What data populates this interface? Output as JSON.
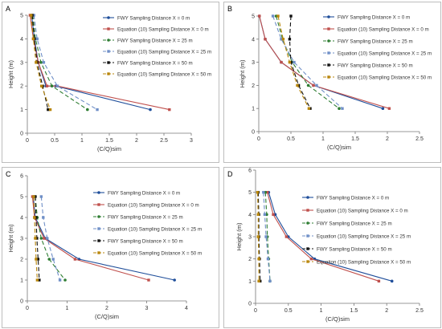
{
  "legend_labels": [
    "FWY Sampling Distance X = 0 m",
    "Equation (10) Sampling Distance X = 0 m",
    "FWY Sampling Distance X = 25 m",
    "Equation (10) Sampling Distance X = 25 m",
    "FWY Sampling Distance X = 50 m",
    "Equation (10) Sampling Distance X = 50 m"
  ],
  "series_colors": [
    "#1f4e9a",
    "#c0504d",
    "#2e7d32",
    "#6f8fc7",
    "#111111",
    "#b8860b"
  ],
  "chart_data": [
    {
      "panel": "A",
      "type": "line",
      "xlabel": "(C/Q)sim",
      "ylabel": "Height (m)",
      "xlim": [
        0,
        3
      ],
      "ylim": [
        0,
        5
      ],
      "xticks": [
        "0",
        "0.5",
        "1",
        "1.5",
        "2",
        "2.5",
        "3"
      ],
      "yticks": [
        "0",
        "1",
        "2",
        "3",
        "4",
        "5"
      ],
      "series": [
        {
          "name": "FWY Sampling Distance X = 0 m",
          "x": [
            0.08,
            0.13,
            0.2,
            0.34,
            0.52,
            2.25
          ],
          "y": [
            5,
            4,
            3,
            2,
            2,
            1
          ]
        },
        {
          "name": "Equation (10) Sampling Distance X = 0 m",
          "x": [
            0.05,
            0.11,
            0.2,
            0.36,
            0.55,
            2.6
          ],
          "y": [
            5,
            4,
            3,
            2,
            2,
            1
          ]
        },
        {
          "name": "FWY Sampling Distance X = 25 m",
          "x": [
            0.1,
            0.15,
            0.25,
            0.45,
            1.1
          ],
          "y": [
            5,
            4,
            3,
            2,
            1
          ]
        },
        {
          "name": "Equation (10) Sampling Distance X = 25 m",
          "x": [
            0.12,
            0.18,
            0.3,
            0.55,
            1.28
          ],
          "y": [
            5,
            4,
            3,
            2,
            1
          ]
        },
        {
          "name": "FWY Sampling Distance X = 50 m",
          "x": [
            0.09,
            0.13,
            0.18,
            0.28,
            0.38
          ],
          "y": [
            5,
            4,
            3,
            2,
            1
          ]
        },
        {
          "name": "Equation (10) Sampling Distance X = 50 m",
          "x": [
            0.07,
            0.11,
            0.16,
            0.26,
            0.42
          ],
          "y": [
            5,
            4,
            3,
            2,
            1
          ]
        }
      ]
    },
    {
      "panel": "B",
      "type": "line",
      "xlabel": "(C/Q)sim",
      "ylabel": "Height (m)",
      "xlim": [
        0,
        2.5
      ],
      "ylim": [
        0,
        5
      ],
      "xticks": [
        "0",
        "0.5",
        "1",
        "1.5",
        "2",
        "2.5"
      ],
      "yticks": [
        "0",
        "1",
        "2",
        "3",
        "4",
        "5"
      ],
      "series": [
        {
          "name": "FWY Sampling Distance X = 0 m",
          "x": [
            0.01,
            0.1,
            0.35,
            0.85,
            1.93
          ],
          "y": [
            5,
            4,
            3,
            2,
            1
          ]
        },
        {
          "name": "Equation (10) Sampling Distance X = 0 m",
          "x": [
            0.01,
            0.1,
            0.35,
            0.85,
            2.03
          ],
          "y": [
            5,
            4,
            3,
            2,
            1
          ]
        },
        {
          "name": "FWY Sampling Distance X = 25 m",
          "x": [
            0.27,
            0.37,
            0.52,
            0.77,
            1.25
          ],
          "y": [
            5,
            4,
            3,
            2,
            1
          ]
        },
        {
          "name": "Equation (10) Sampling Distance X = 25 m",
          "x": [
            0.22,
            0.35,
            0.55,
            0.9,
            1.3
          ],
          "y": [
            5,
            4,
            3,
            2,
            1
          ]
        },
        {
          "name": "FWY Sampling Distance X = 50 m",
          "x": [
            0.5,
            0.48,
            0.5,
            0.62,
            0.8
          ],
          "y": [
            5,
            4,
            3,
            2,
            1
          ]
        },
        {
          "name": "Equation (10) Sampling Distance X = 50 m",
          "x": [
            0.3,
            0.38,
            0.48,
            0.6,
            0.78
          ],
          "y": [
            5,
            4,
            3,
            2,
            1
          ]
        }
      ]
    },
    {
      "panel": "C",
      "type": "line",
      "xlabel": "(C/Q)sim",
      "ylabel": "Height (m)",
      "xlim": [
        0,
        4
      ],
      "ylim": [
        0,
        6
      ],
      "xticks": [
        "0",
        "1",
        "2",
        "3",
        "4"
      ],
      "yticks": [
        "0",
        "1",
        "2",
        "3",
        "4",
        "5",
        "6"
      ],
      "series": [
        {
          "name": "FWY Sampling Distance X = 0 m",
          "x": [
            0.15,
            0.2,
            0.45,
            1.3,
            3.7
          ],
          "y": [
            5,
            4,
            3,
            2,
            1
          ]
        },
        {
          "name": "Equation (10) Sampling Distance X = 0 m",
          "x": [
            0.13,
            0.18,
            0.42,
            1.2,
            3.05
          ],
          "y": [
            5,
            4,
            3,
            2,
            1
          ]
        },
        {
          "name": "FWY Sampling Distance X = 25 m",
          "x": [
            0.2,
            0.25,
            0.35,
            0.55,
            0.95
          ],
          "y": [
            5,
            4,
            3,
            2,
            1
          ]
        },
        {
          "name": "Equation (10) Sampling Distance X = 25 m",
          "x": [
            0.35,
            0.4,
            0.5,
            0.65,
            0.82
          ],
          "y": [
            5,
            4,
            3,
            2,
            1
          ]
        },
        {
          "name": "FWY Sampling Distance X = 50 m",
          "x": [
            0.2,
            0.22,
            0.24,
            0.27,
            0.3
          ],
          "y": [
            5,
            4,
            3,
            2,
            1
          ]
        },
        {
          "name": "Equation (10) Sampling Distance X = 50 m",
          "x": [
            0.16,
            0.18,
            0.2,
            0.22,
            0.25
          ],
          "y": [
            5,
            4,
            3,
            2,
            1
          ]
        }
      ]
    },
    {
      "panel": "D",
      "type": "line",
      "xlabel": "(C/Q)sim",
      "ylabel": "Height (m)",
      "xlim": [
        0,
        2.5
      ],
      "ylim": [
        0,
        6
      ],
      "xticks": [
        "0",
        "0.5",
        "1",
        "1.5",
        "2",
        "2.5"
      ],
      "yticks": [
        "0",
        "1",
        "2",
        "3",
        "4",
        "5",
        "6"
      ],
      "series": [
        {
          "name": "FWY Sampling Distance X = 0 m",
          "x": [
            0.2,
            0.3,
            0.5,
            0.9,
            2.08
          ],
          "y": [
            5,
            4,
            3,
            2,
            1
          ]
        },
        {
          "name": "Equation (10) Sampling Distance X = 0 m",
          "x": [
            0.18,
            0.27,
            0.47,
            0.85,
            1.88
          ],
          "y": [
            5,
            4,
            3,
            2,
            1
          ]
        },
        {
          "name": "FWY Sampling Distance X = 25 m",
          "x": [
            0.15,
            0.17,
            0.18,
            0.2,
            0.22
          ],
          "y": [
            5,
            4,
            3,
            2,
            1
          ]
        },
        {
          "name": "Equation (10) Sampling Distance X = 25 m",
          "x": [
            0.12,
            0.14,
            0.16,
            0.19,
            0.22
          ],
          "y": [
            5,
            4,
            3,
            2,
            1
          ]
        },
        {
          "name": "FWY Sampling Distance X = 50 m",
          "x": [
            0.04,
            0.05,
            0.05,
            0.06,
            0.07
          ],
          "y": [
            5,
            4,
            3,
            2,
            1
          ]
        },
        {
          "name": "Equation (10) Sampling Distance X = 50 m",
          "x": [
            0.03,
            0.04,
            0.04,
            0.05,
            0.05
          ],
          "y": [
            5,
            4,
            3,
            2,
            1
          ]
        }
      ]
    }
  ]
}
